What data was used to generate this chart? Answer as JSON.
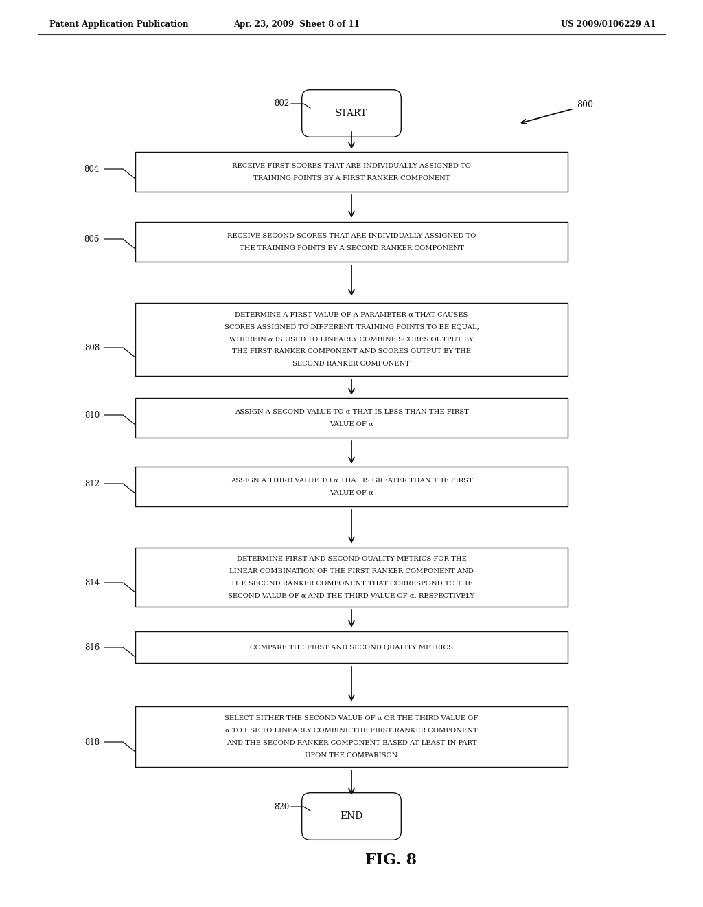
{
  "header_left": "Patent Application Publication",
  "header_middle": "Apr. 23, 2009  Sheet 8 of 11",
  "header_right": "US 2009/0106229 A1",
  "fig_label": "FIG. 8",
  "diagram_label": "800",
  "bg_color": "#ffffff",
  "start_label": "802",
  "end_label": "820",
  "start_text": "START",
  "end_text": "END",
  "boxes": [
    {
      "id": "804",
      "lines": [
        "RECEIVE FIRST SCORES THAT ARE INDIVIDUALLY ASSIGNED TO",
        "TRAINING POINTS BY A FIRST RANKER COMPONENT"
      ]
    },
    {
      "id": "806",
      "lines": [
        "RECEIVE SECOND SCORES THAT ARE INDIVIDUALLY ASSIGNED TO",
        "THE TRAINING POINTS BY A SECOND RANKER COMPONENT"
      ]
    },
    {
      "id": "808",
      "lines": [
        "DETERMINE A FIRST VALUE OF A PARAMETER α THAT CAUSES",
        "SCORES ASSIGNED TO DIFFERENT TRAINING POINTS TO BE EQUAL,",
        "WHEREIN α IS USED TO LINEARLY COMBINE SCORES OUTPUT BY",
        "THE FIRST RANKER COMPONENT AND SCORES OUTPUT BY THE",
        "SECOND RANKER COMPONENT"
      ]
    },
    {
      "id": "810",
      "lines": [
        "ASSIGN A SECOND VALUE TO α THAT IS LESS THAN THE FIRST",
        "VALUE OF α"
      ]
    },
    {
      "id": "812",
      "lines": [
        "ASSIGN A THIRD VALUE TO α THAT IS GREATER THAN THE FIRST",
        "VALUE OF α"
      ]
    },
    {
      "id": "814",
      "lines": [
        "DETERMINE FIRST AND SECOND QUALITY METRICS FOR THE",
        "LINEAR COMBINATION OF THE FIRST RANKER COMPONENT AND",
        "THE SECOND RANKER COMPONENT THAT CORRESPOND TO THE",
        "SECOND VALUE OF α AND THE THIRD VALUE OF α, RESPECTIVELY"
      ]
    },
    {
      "id": "816",
      "lines": [
        "COMPARE THE FIRST AND SECOND QUALITY METRICS"
      ]
    },
    {
      "id": "818",
      "lines": [
        "SELECT EITHER THE SECOND VALUE OF α OR THE THIRD VALUE OF",
        "α TO USE TO LINEARLY COMBINE THE FIRST RANKER COMPONENT",
        "AND THE SECOND RANKER COMPONENT BASED AT LEAST IN PART",
        "UPON THE COMPARISON"
      ]
    }
  ]
}
